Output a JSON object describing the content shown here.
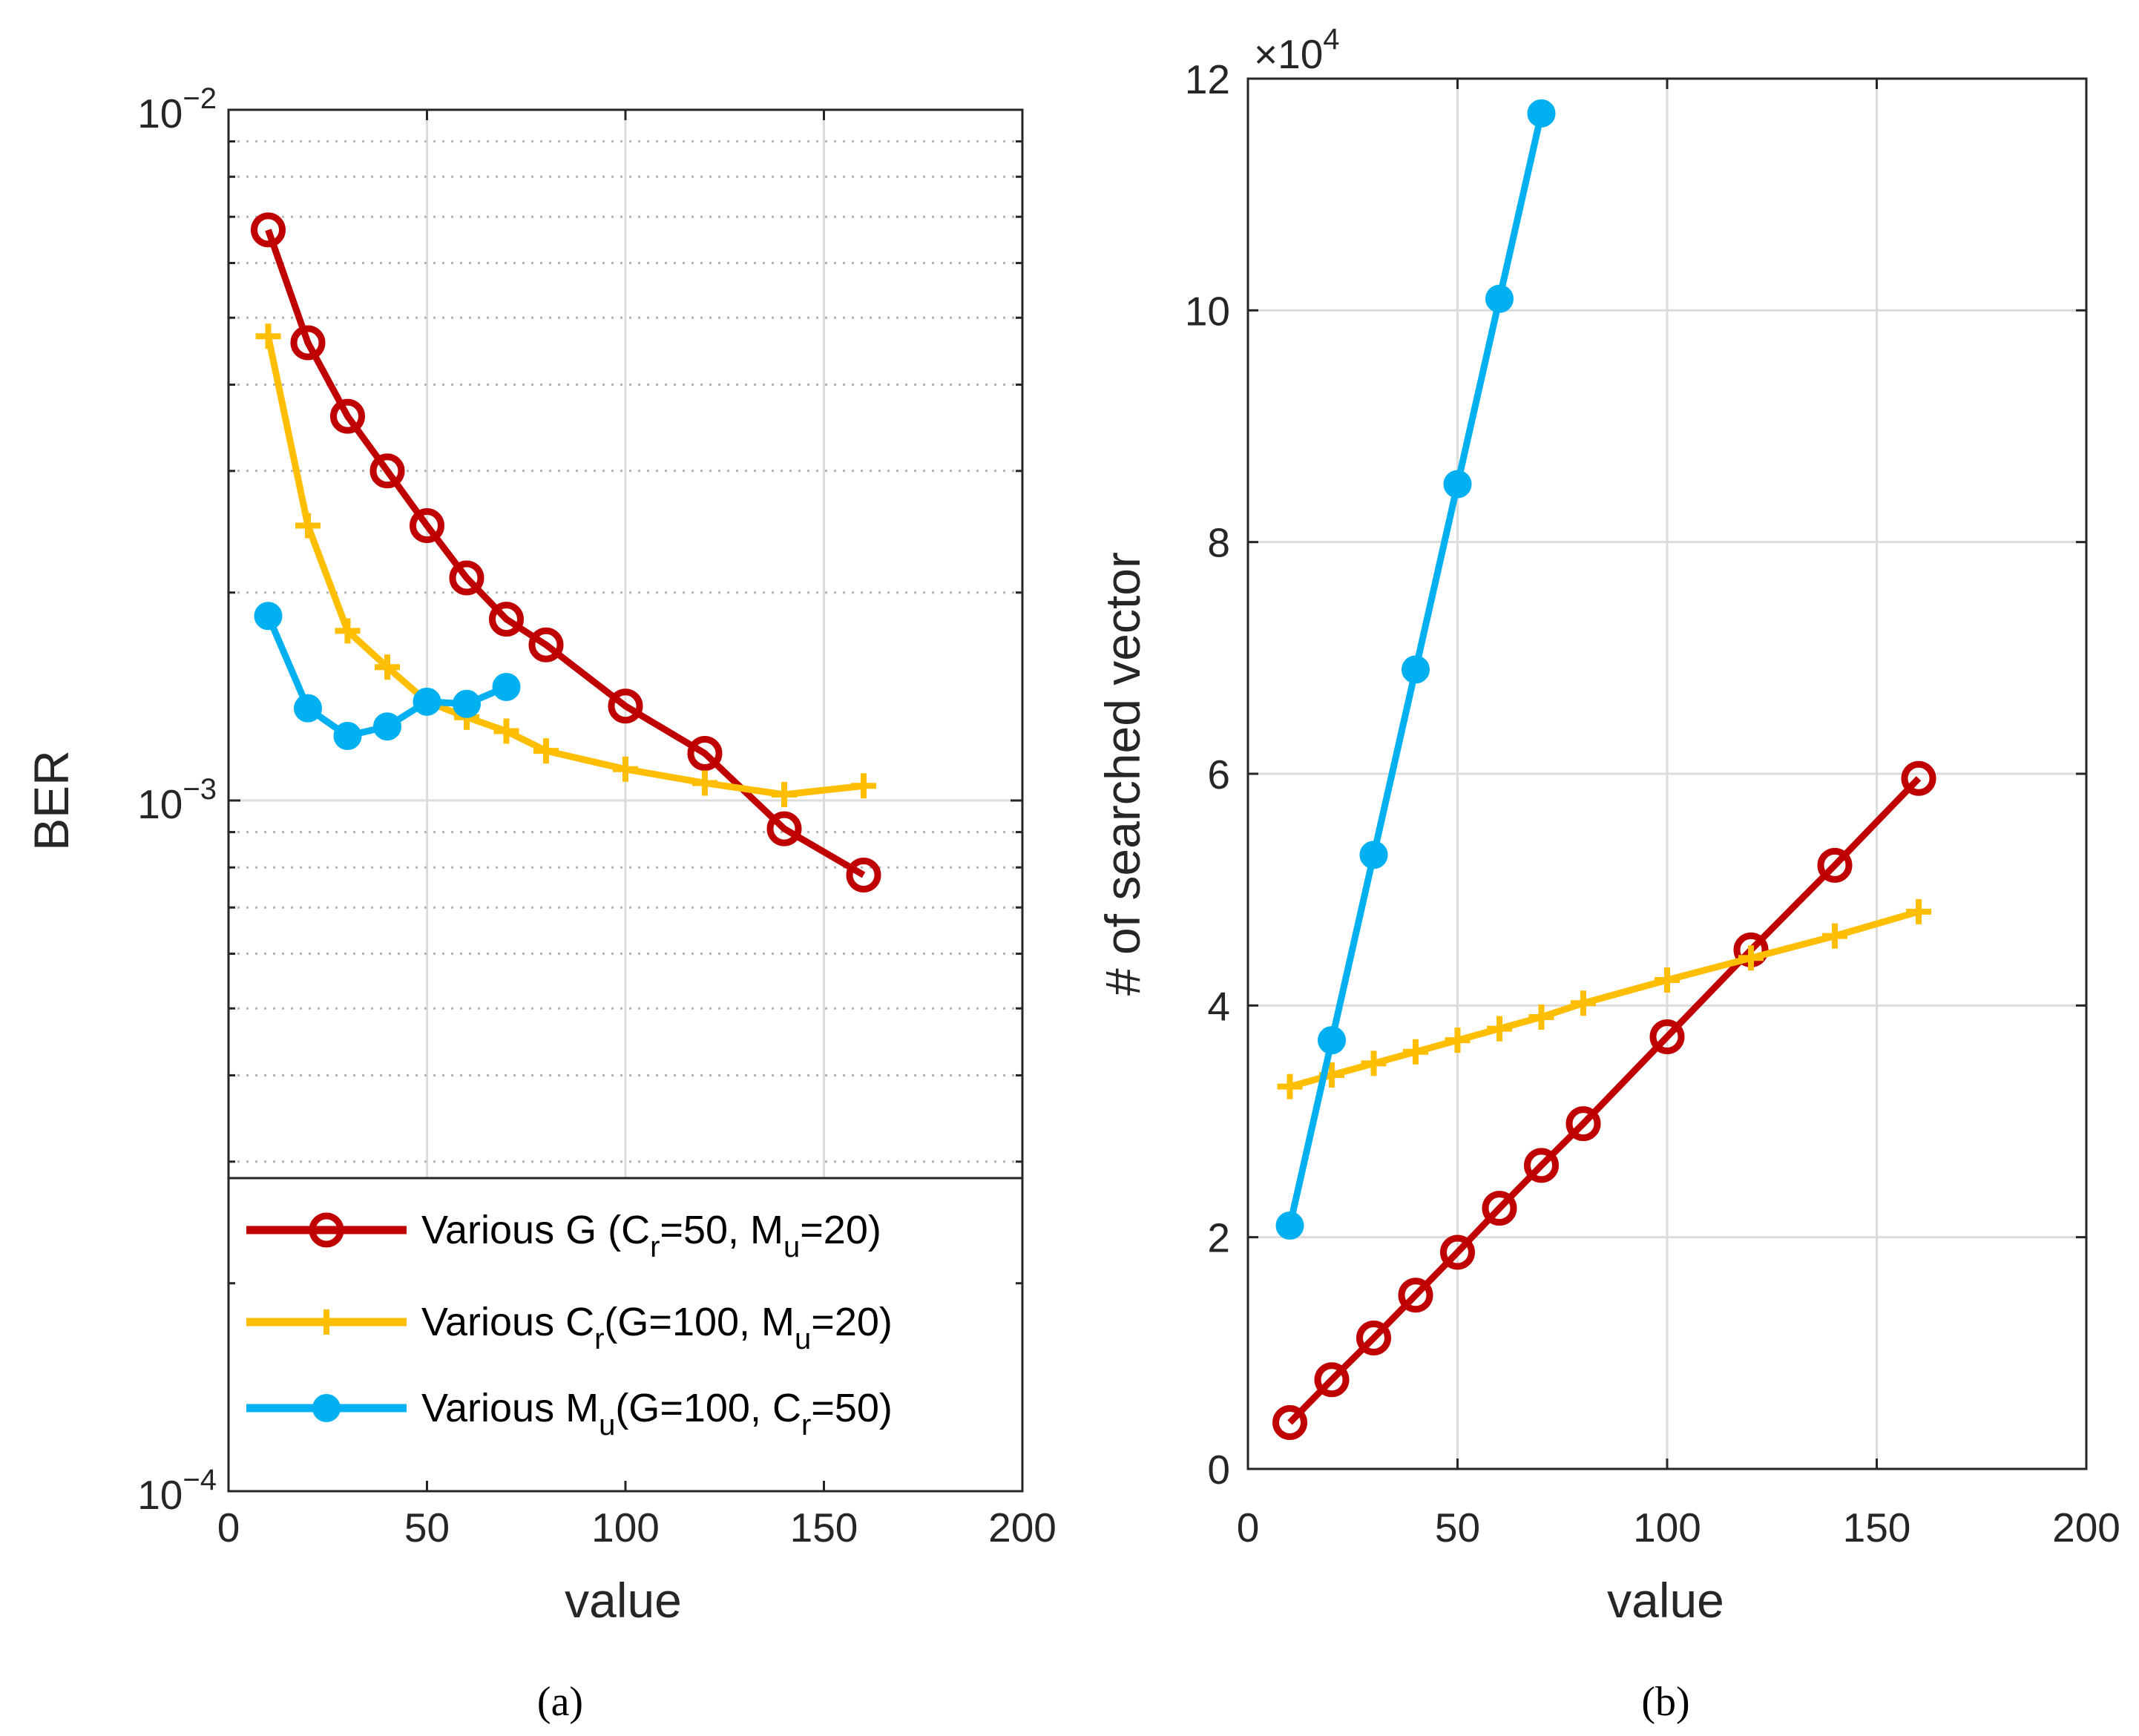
{
  "colors": {
    "various_g": "#c00000",
    "various_cr": "#ffbf00",
    "various_mu": "#00b0f0"
  },
  "chart_data": [
    {
      "type": "line",
      "caption": "(a)",
      "xlabel": "value",
      "ylabel": "BER",
      "xlim": [
        0,
        200
      ],
      "ylim": [
        0.0001,
        0.01
      ],
      "yscale": "log",
      "grid": true,
      "legend_position": "lower-left",
      "x_tick_labels": [
        "0",
        "50",
        "100",
        "150",
        "200"
      ],
      "y_tick_labels": [
        {
          "base": "10",
          "exp": "−2"
        },
        {
          "base": "10",
          "exp": "−3"
        },
        {
          "base": "10",
          "exp": "−4"
        }
      ],
      "legend": [
        {
          "key": "various_g",
          "parts": [
            {
              "t": "Various G (C"
            },
            {
              "t": "r",
              "sub": true
            },
            {
              "t": "=50, M"
            },
            {
              "t": "u",
              "sub": true
            },
            {
              "t": "=20)"
            }
          ]
        },
        {
          "key": "various_cr",
          "parts": [
            {
              "t": "Various C"
            },
            {
              "t": "r",
              "sub": true
            },
            {
              "t": "(G=100, M"
            },
            {
              "t": "u",
              "sub": true
            },
            {
              "t": "=20)"
            }
          ]
        },
        {
          "key": "various_mu",
          "parts": [
            {
              "t": "Various M"
            },
            {
              "t": "u",
              "sub": true
            },
            {
              "t": "(G=100, C"
            },
            {
              "t": "r",
              "sub": true
            },
            {
              "t": "=50)"
            }
          ]
        }
      ],
      "series": [
        {
          "key": "various_g",
          "marker": "circle",
          "x": [
            10,
            20,
            30,
            40,
            50,
            60,
            70,
            80,
            100,
            120,
            140,
            160
          ],
          "y": [
            0.0067,
            0.0046,
            0.0036,
            0.003,
            0.0025,
            0.0021,
            0.00183,
            0.00168,
            0.00137,
            0.00117,
            0.00091,
            0.00078
          ]
        },
        {
          "key": "various_cr",
          "marker": "plus",
          "x": [
            10,
            20,
            30,
            40,
            50,
            60,
            70,
            80,
            100,
            120,
            140,
            160
          ],
          "y": [
            0.0047,
            0.0025,
            0.00176,
            0.00156,
            0.00139,
            0.00132,
            0.00126,
            0.00118,
            0.00111,
            0.00106,
            0.00102,
            0.00105
          ]
        },
        {
          "key": "various_mu",
          "marker": "dot",
          "x": [
            10,
            20,
            30,
            40,
            50,
            60,
            70
          ],
          "y": [
            0.00185,
            0.00136,
            0.00124,
            0.00128,
            0.00139,
            0.00138,
            0.00146
          ]
        }
      ]
    },
    {
      "type": "line",
      "caption": "(b)",
      "xlabel": "value",
      "ylabel": "# of searched vector",
      "xlim": [
        0,
        200
      ],
      "ylim": [
        0,
        120000
      ],
      "exponent_label": {
        "prefix": "×10",
        "exp": "4"
      },
      "grid": true,
      "x_tick_labels": [
        "0",
        "50",
        "100",
        "150",
        "200"
      ],
      "y_tick_labels": [
        "0",
        "2",
        "4",
        "6",
        "8",
        "10",
        "12"
      ],
      "series": [
        {
          "key": "various_g",
          "marker": "circle",
          "x": [
            10,
            20,
            30,
            40,
            50,
            60,
            70,
            80,
            100,
            120,
            140,
            160
          ],
          "y": [
            4000,
            7700,
            11300,
            15000,
            18700,
            22500,
            26200,
            29800,
            37300,
            44800,
            52100,
            59600
          ]
        },
        {
          "key": "various_cr",
          "marker": "plus",
          "x": [
            10,
            20,
            30,
            40,
            50,
            60,
            70,
            80,
            100,
            120,
            140,
            160
          ],
          "y": [
            33000,
            34000,
            35000,
            36000,
            37000,
            38000,
            39000,
            40200,
            42200,
            44100,
            46000,
            48100
          ]
        },
        {
          "key": "various_mu",
          "marker": "dot",
          "x": [
            10,
            20,
            30,
            40,
            50,
            60,
            70
          ],
          "y": [
            21000,
            37000,
            53000,
            69000,
            85000,
            101000,
            117000
          ]
        }
      ]
    }
  ]
}
